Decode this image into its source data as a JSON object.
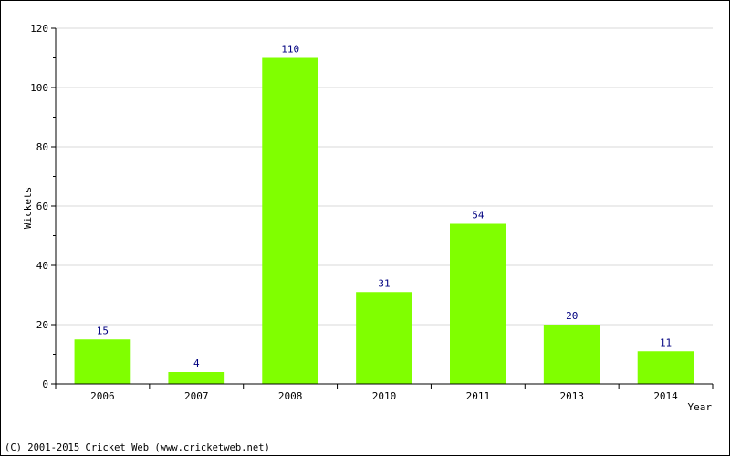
{
  "chart_data": {
    "type": "bar",
    "title": "",
    "xlabel": "Year",
    "ylabel": "Wickets",
    "categories": [
      "2006",
      "2007",
      "2008",
      "2010",
      "2011",
      "2013",
      "2014"
    ],
    "values": [
      15,
      4,
      110,
      31,
      54,
      20,
      11
    ],
    "ylim": [
      0,
      120
    ],
    "yticks": [
      0,
      20,
      40,
      60,
      80,
      100,
      120
    ],
    "grid": true,
    "bar_color": "#80ff00",
    "label_color": "#000080",
    "grid_color": "#d8d8d8"
  },
  "footer": {
    "copyright": "(C) 2001-2015 Cricket Web (www.cricketweb.net)"
  }
}
